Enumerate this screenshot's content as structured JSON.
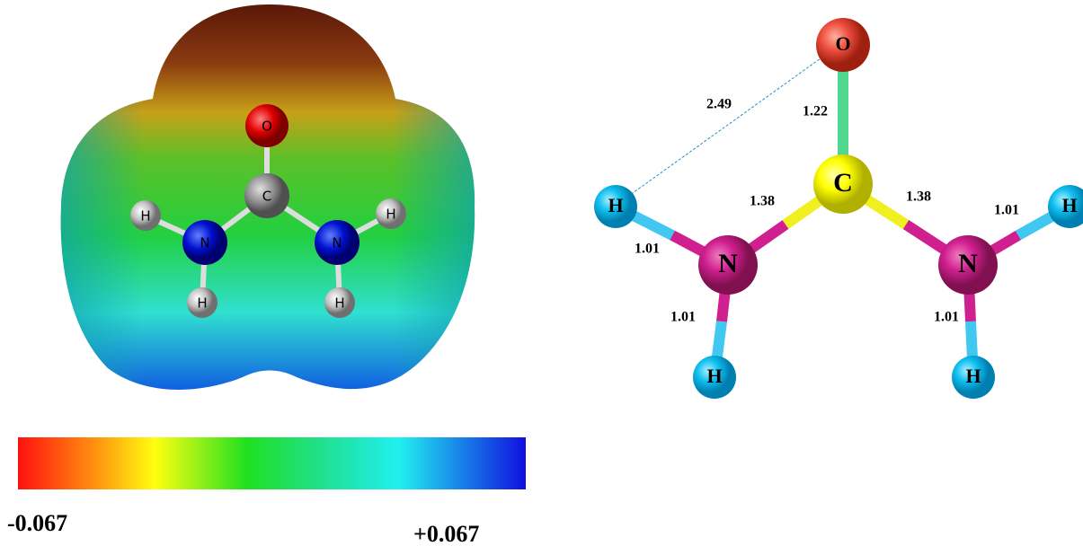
{
  "mep_map": {
    "atoms": [
      "O",
      "C",
      "N",
      "N",
      "H",
      "H",
      "H",
      "H"
    ]
  },
  "colorbar": {
    "min_label": "-0.067",
    "max_label": "+0.067"
  },
  "structure": {
    "atoms": [
      "O",
      "C",
      "N",
      "N",
      "H",
      "H",
      "H",
      "H"
    ],
    "bond_lengths": [
      "1.22",
      "1.38",
      "1.38",
      "1.01",
      "1.01",
      "1.01",
      "1.01"
    ],
    "contact_length": "2.49"
  }
}
